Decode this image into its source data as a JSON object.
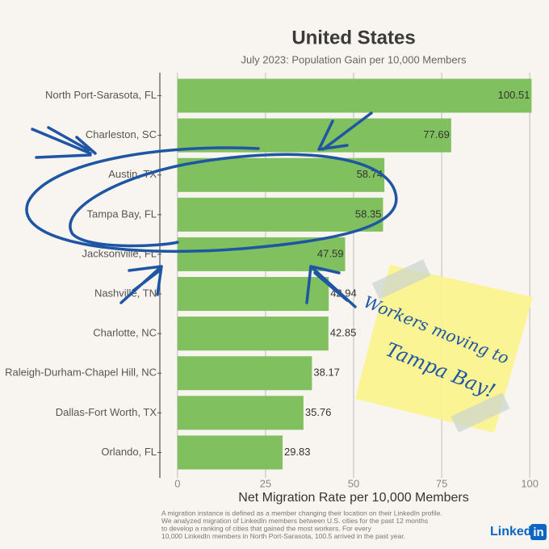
{
  "chart_data": {
    "type": "barh",
    "title": "United States",
    "subtitle": "July 2023: Population Gain per 10,000 Members",
    "categories": [
      "North Port-Sarasota, FL",
      "Charleston, SC",
      "Austin, TX",
      "Tampa Bay, FL",
      "Jacksonville, FL",
      "Nashville, TN",
      "Charlotte, NC",
      "Raleigh-Durham-Chapel Hill, NC",
      "Dallas-Fort Worth, TX",
      "Orlando, FL"
    ],
    "values": [
      100.51,
      77.69,
      58.74,
      58.35,
      47.59,
      42.94,
      42.85,
      38.17,
      35.76,
      29.83
    ],
    "color": "#80c05e",
    "xlabel": "Net Migration Rate per 10,000 Members",
    "xlim": [
      -5,
      105
    ],
    "xticks": [
      0,
      25,
      50,
      75,
      100
    ],
    "grid": true,
    "footnote": [
      "A migration instance is defined as a member changing their location on their LinkedIn profile.",
      "We analyzed migration of LinkedIn members between U.S. cities for the past 12 months",
      "to develop a ranking of cities that gained the most workers. For every",
      "10,000 LinkedIn members in North Port-Sarasota, 100.5 arrived in the past year."
    ],
    "annotation": [
      "Workers moving to",
      "Tampa Bay!"
    ],
    "logo": [
      "Linked",
      "in"
    ]
  }
}
